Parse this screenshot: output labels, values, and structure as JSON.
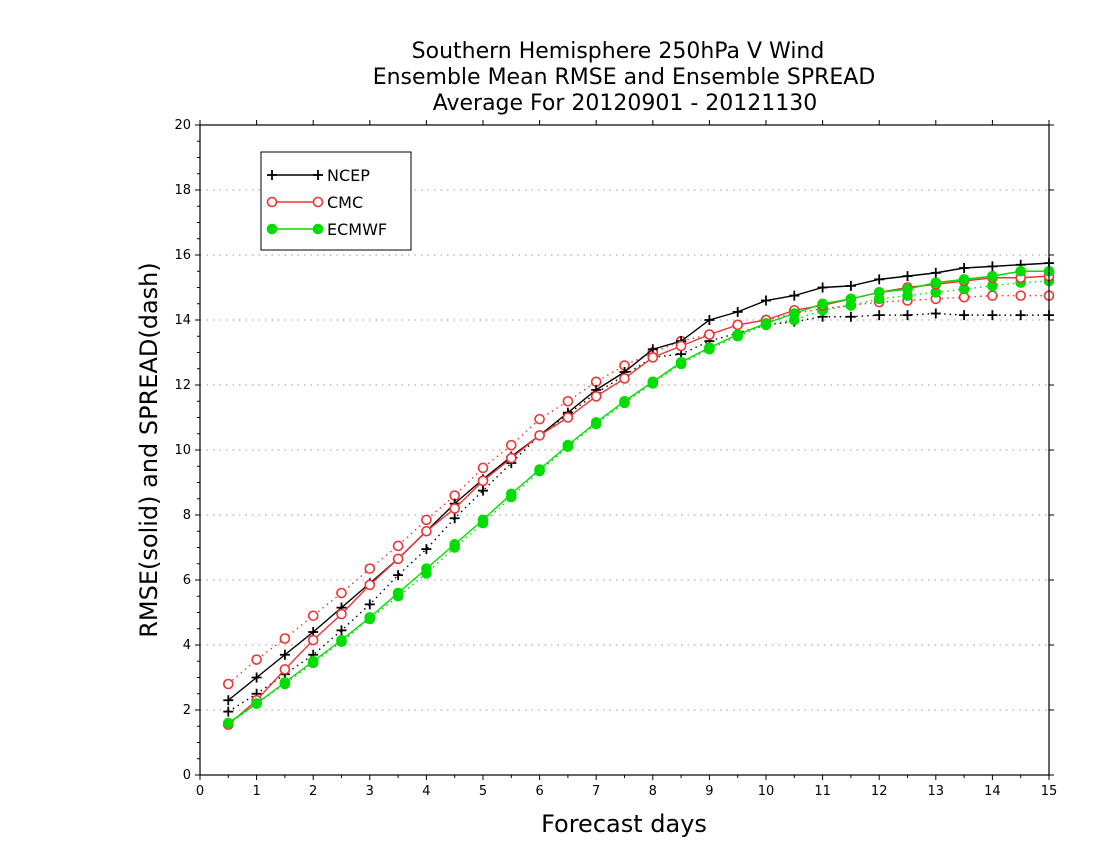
{
  "chart_data": {
    "type": "line",
    "title": [
      "Southern Hemisphere 250hPa V Wind",
      "Ensemble Mean RMSE and Ensemble SPREAD",
      "Average For 20120901 - 20121130"
    ],
    "xlabel": "Forecast days",
    "ylabel": "RMSE(solid) and SPREAD(dash)",
    "xlim": [
      0,
      15
    ],
    "ylim": [
      0,
      20
    ],
    "xticks": [
      0,
      1,
      2,
      3,
      4,
      5,
      6,
      7,
      8,
      9,
      10,
      11,
      12,
      13,
      14,
      15
    ],
    "yticks": [
      0,
      2,
      4,
      6,
      8,
      10,
      12,
      14,
      16,
      18,
      20
    ],
    "grid": "horizontal dotted at y ticks",
    "legend_position": "top-left",
    "x": [
      0.5,
      1,
      1.5,
      2,
      2.5,
      3,
      3.5,
      4,
      4.5,
      5,
      5.5,
      6,
      6.5,
      7,
      7.5,
      8,
      8.5,
      9,
      9.5,
      10,
      10.5,
      11,
      11.5,
      12,
      12.5,
      13,
      13.5,
      14,
      14.5,
      15
    ],
    "series": [
      {
        "name": "NCEP",
        "kind": "rmse",
        "line": "solid",
        "marker": "plus",
        "color": "#000000",
        "values": [
          2.3,
          3.0,
          3.7,
          4.4,
          5.15,
          5.9,
          6.65,
          7.5,
          8.35,
          9.1,
          9.8,
          10.45,
          11.15,
          11.85,
          12.4,
          13.1,
          13.35,
          14.0,
          14.25,
          14.6,
          14.75,
          15.0,
          15.05,
          15.25,
          15.35,
          15.45,
          15.6,
          15.65,
          15.7,
          15.75
        ]
      },
      {
        "name": "CMC",
        "kind": "rmse",
        "line": "solid",
        "marker": "circle-open",
        "color": "#ee3333",
        "values": [
          1.55,
          2.3,
          3.25,
          4.15,
          4.95,
          5.85,
          6.65,
          7.5,
          8.2,
          9.05,
          9.75,
          10.45,
          11.0,
          11.65,
          12.2,
          12.85,
          13.2,
          13.55,
          13.85,
          14.0,
          14.3,
          14.45,
          14.65,
          14.85,
          15.0,
          15.1,
          15.2,
          15.3,
          15.3,
          15.35
        ]
      },
      {
        "name": "ECMWF",
        "kind": "rmse",
        "line": "solid",
        "marker": "circle-filled",
        "color": "#00dd00",
        "values": [
          1.6,
          2.2,
          2.85,
          3.5,
          4.15,
          4.85,
          5.6,
          6.35,
          7.1,
          7.85,
          8.65,
          9.4,
          10.15,
          10.85,
          11.5,
          12.1,
          12.7,
          13.15,
          13.55,
          13.9,
          14.2,
          14.5,
          14.65,
          14.85,
          14.95,
          15.15,
          15.25,
          15.35,
          15.5,
          15.5
        ]
      },
      {
        "name": "NCEP",
        "kind": "spread",
        "line": "dotted",
        "marker": "plus",
        "color": "#000000",
        "values": [
          1.95,
          2.5,
          3.1,
          3.7,
          4.45,
          5.25,
          6.15,
          6.95,
          7.9,
          8.75,
          9.6,
          10.45,
          11.1,
          11.75,
          12.3,
          12.85,
          12.95,
          13.35,
          13.6,
          13.85,
          13.95,
          14.1,
          14.1,
          14.15,
          14.15,
          14.2,
          14.15,
          14.15,
          14.15,
          14.15
        ]
      },
      {
        "name": "CMC",
        "kind": "spread",
        "line": "dotted",
        "marker": "circle-open",
        "color": "#ee3333",
        "values": [
          2.8,
          3.55,
          4.2,
          4.9,
          5.6,
          6.35,
          7.05,
          7.85,
          8.6,
          9.45,
          10.15,
          10.95,
          11.5,
          12.1,
          12.6,
          13.0,
          13.35,
          13.55,
          13.85,
          14.0,
          14.2,
          14.35,
          14.45,
          14.55,
          14.6,
          14.65,
          14.7,
          14.75,
          14.75,
          14.75
        ]
      },
      {
        "name": "ECMWF",
        "kind": "spread",
        "line": "dotted",
        "marker": "circle-filled",
        "color": "#00dd00",
        "values": [
          1.55,
          2.2,
          2.8,
          3.45,
          4.1,
          4.8,
          5.5,
          6.2,
          7.0,
          7.75,
          8.55,
          9.35,
          10.1,
          10.8,
          11.45,
          12.05,
          12.65,
          13.1,
          13.5,
          13.85,
          14.0,
          14.3,
          14.45,
          14.65,
          14.75,
          14.85,
          14.95,
          15.05,
          15.15,
          15.2
        ]
      }
    ],
    "legend": [
      {
        "name": "NCEP",
        "marker": "plus",
        "color": "#000000"
      },
      {
        "name": "CMC",
        "marker": "circle-open",
        "color": "#ee3333"
      },
      {
        "name": "ECMWF",
        "marker": "circle-filled",
        "color": "#00dd00"
      }
    ]
  }
}
